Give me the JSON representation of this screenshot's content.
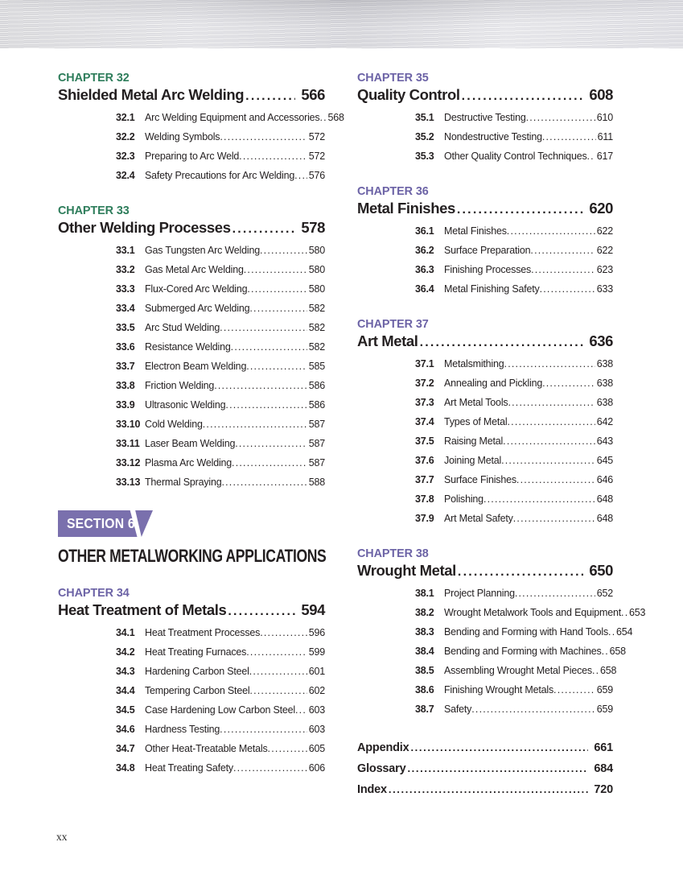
{
  "accent_colors": {
    "green": "#2E7D5B",
    "purple": "#6C63A6",
    "badge_purple": "#7A70AD",
    "text": "#231F20"
  },
  "footer": {
    "page_label": "xx"
  },
  "columns": [
    {
      "blocks": [
        {
          "type": "chapter",
          "eyebrow": "CHAPTER 32",
          "accent": "green",
          "title": "Shielded Metal Arc Welding",
          "page": "566",
          "entries": [
            {
              "num": "32.1",
              "label": "Arc Welding Equipment and Accessories",
              "page": "568"
            },
            {
              "num": "32.2",
              "label": "Welding Symbols",
              "page": "572"
            },
            {
              "num": "32.3",
              "label": "Preparing to Arc Weld",
              "page": "572"
            },
            {
              "num": "32.4",
              "label": "Safety Precautions for Arc Welding",
              "page": "576"
            }
          ]
        },
        {
          "type": "chapter",
          "eyebrow": "CHAPTER 33",
          "accent": "green",
          "title": "Other Welding Processes",
          "page": "578",
          "entries": [
            {
              "num": "33.1",
              "label": "Gas Tungsten Arc Welding",
              "page": "580"
            },
            {
              "num": "33.2",
              "label": "Gas Metal Arc Welding",
              "page": "580"
            },
            {
              "num": "33.3",
              "label": "Flux-Cored Arc Welding",
              "page": "580"
            },
            {
              "num": "33.4",
              "label": "Submerged Arc Welding",
              "page": "582"
            },
            {
              "num": "33.5",
              "label": "Arc Stud Welding",
              "page": "582"
            },
            {
              "num": "33.6",
              "label": "Resistance Welding",
              "page": "582"
            },
            {
              "num": "33.7",
              "label": "Electron Beam Welding",
              "page": "585"
            },
            {
              "num": "33.8",
              "label": "Friction Welding",
              "page": "586"
            },
            {
              "num": "33.9",
              "label": "Ultrasonic Welding",
              "page": "586"
            },
            {
              "num": "33.10",
              "label": "Cold Welding",
              "page": "587"
            },
            {
              "num": "33.11",
              "label": "Laser Beam Welding",
              "page": "587"
            },
            {
              "num": "33.12",
              "label": "Plasma Arc Welding",
              "page": "587"
            },
            {
              "num": "33.13",
              "label": "Thermal Spraying",
              "page": "588"
            }
          ]
        },
        {
          "type": "section-banner",
          "badge": "SECTION 6",
          "title": "OTHER METALWORKING APPLICATIONS"
        },
        {
          "type": "chapter",
          "eyebrow": "CHAPTER 34",
          "accent": "purple",
          "title": "Heat Treatment of Metals",
          "page": "594",
          "entries": [
            {
              "num": "34.1",
              "label": "Heat Treatment Processes",
              "page": "596"
            },
            {
              "num": "34.2",
              "label": "Heat Treating Furnaces",
              "page": "599"
            },
            {
              "num": "34.3",
              "label": "Hardening Carbon Steel",
              "page": "601"
            },
            {
              "num": "34.4",
              "label": "Tempering Carbon Steel",
              "page": "602"
            },
            {
              "num": "34.5",
              "label": "Case Hardening Low Carbon Steel",
              "page": "603"
            },
            {
              "num": "34.6",
              "label": "Hardness Testing",
              "page": "603"
            },
            {
              "num": "34.7",
              "label": "Other Heat-Treatable Metals",
              "page": "605"
            },
            {
              "num": "34.8",
              "label": "Heat Treating Safety",
              "page": "606"
            }
          ]
        }
      ]
    },
    {
      "blocks": [
        {
          "type": "chapter",
          "eyebrow": "CHAPTER 35",
          "accent": "purple",
          "title": "Quality Control",
          "page": "608",
          "entries": [
            {
              "num": "35.1",
              "label": "Destructive Testing",
              "page": "610"
            },
            {
              "num": "35.2",
              "label": "Nondestructive Testing",
              "page": "611"
            },
            {
              "num": "35.3",
              "label": "Other Quality Control Techniques",
              "page": "617"
            }
          ]
        },
        {
          "type": "chapter",
          "eyebrow": "CHAPTER 36",
          "accent": "purple",
          "title": "Metal Finishes",
          "page": "620",
          "entries": [
            {
              "num": "36.1",
              "label": "Metal Finishes",
              "page": "622"
            },
            {
              "num": "36.2",
              "label": "Surface Preparation",
              "page": "622"
            },
            {
              "num": "36.3",
              "label": "Finishing Processes",
              "page": "623"
            },
            {
              "num": "36.4",
              "label": "Metal Finishing Safety",
              "page": "633"
            }
          ]
        },
        {
          "type": "chapter",
          "eyebrow": "CHAPTER 37",
          "accent": "purple",
          "title": "Art Metal",
          "page": "636",
          "entries": [
            {
              "num": "37.1",
              "label": "Metalsmithing",
              "page": "638"
            },
            {
              "num": "37.2",
              "label": "Annealing and Pickling",
              "page": "638"
            },
            {
              "num": "37.3",
              "label": "Art Metal Tools",
              "page": "638"
            },
            {
              "num": "37.4",
              "label": "Types of Metal",
              "page": "642"
            },
            {
              "num": "37.5",
              "label": "Raising Metal",
              "page": "643"
            },
            {
              "num": "37.6",
              "label": "Joining Metal",
              "page": "645"
            },
            {
              "num": "37.7",
              "label": "Surface Finishes",
              "page": "646"
            },
            {
              "num": "37.8",
              "label": "Polishing",
              "page": "648"
            },
            {
              "num": "37.9",
              "label": "Art Metal Safety",
              "page": "648"
            }
          ]
        },
        {
          "type": "chapter",
          "eyebrow": "CHAPTER 38",
          "accent": "purple",
          "title": "Wrought Metal",
          "page": "650",
          "entries": [
            {
              "num": "38.1",
              "label": "Project Planning",
              "page": "652"
            },
            {
              "num": "38.2",
              "label": "Wrought Metalwork Tools and Equipment",
              "page": "653"
            },
            {
              "num": "38.3",
              "label": "Bending and Forming with Hand Tools",
              "page": "654"
            },
            {
              "num": "38.4",
              "label": "Bending and Forming with Machines",
              "page": "658"
            },
            {
              "num": "38.5",
              "label": "Assembling Wrought Metal Pieces",
              "page": "658"
            },
            {
              "num": "38.6",
              "label": "Finishing Wrought Metals",
              "page": "659"
            },
            {
              "num": "38.7",
              "label": "Safety",
              "page": "659"
            }
          ]
        },
        {
          "type": "backmatter",
          "items": [
            {
              "label": "Appendix",
              "page": "661"
            },
            {
              "label": "Glossary",
              "page": "684"
            },
            {
              "label": "Index",
              "page": "720"
            }
          ]
        }
      ]
    }
  ]
}
